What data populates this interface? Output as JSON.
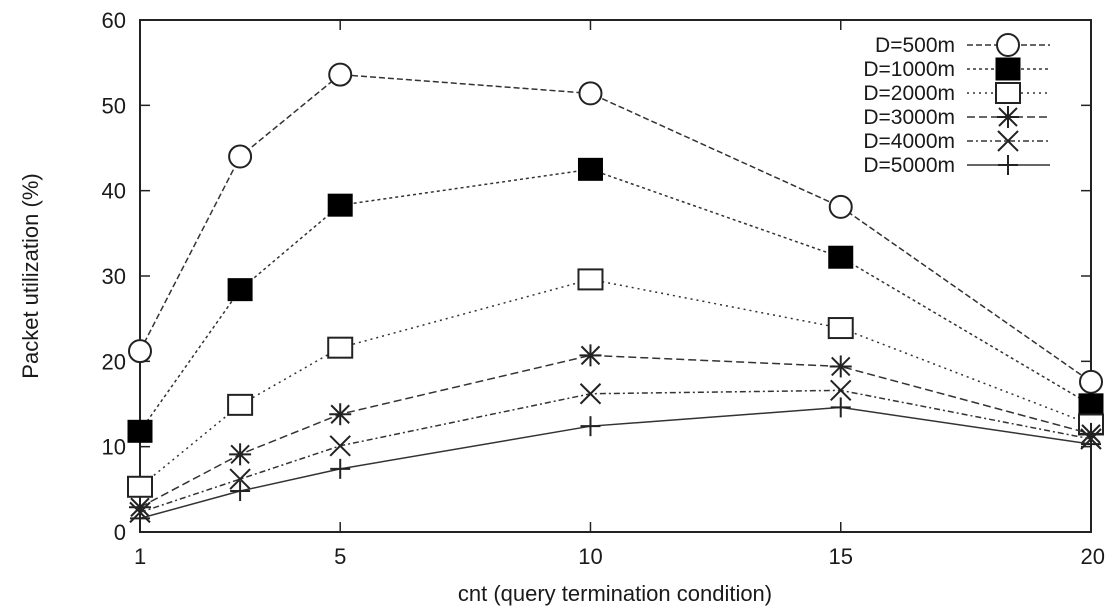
{
  "chart_data": {
    "type": "line",
    "title": "",
    "xlabel": "cnt (query termination condition)",
    "ylabel": "Packet utilization (%)",
    "xlim": [
      1,
      20
    ],
    "ylim": [
      0,
      60
    ],
    "xticks": [
      1,
      5,
      10,
      15,
      20
    ],
    "yticks": [
      0,
      10,
      20,
      30,
      40,
      50,
      60
    ],
    "grid": false,
    "legend_position": "top-right",
    "x": [
      1,
      3,
      5,
      10,
      15,
      20
    ],
    "series": [
      {
        "name": "D=500m",
        "marker": "open-circle",
        "dash": "6,3",
        "values": [
          21.2,
          44.0,
          53.6,
          51.4,
          38.1,
          17.6
        ]
      },
      {
        "name": "D=1000m",
        "marker": "filled-square",
        "dash": "3,3",
        "values": [
          11.8,
          28.4,
          38.3,
          42.5,
          32.2,
          14.9
        ]
      },
      {
        "name": "D=2000m",
        "marker": "open-square",
        "dash": "2,4",
        "values": [
          5.3,
          14.9,
          21.6,
          29.6,
          23.9,
          12.6
        ]
      },
      {
        "name": "D=3000m",
        "marker": "asterisk",
        "dash": "8,4",
        "values": [
          2.9,
          9.1,
          13.8,
          20.7,
          19.4,
          11.5
        ]
      },
      {
        "name": "D=4000m",
        "marker": "cross",
        "dash": "6,3,2,3",
        "values": [
          2.3,
          6.2,
          10.1,
          16.2,
          16.6,
          10.9
        ]
      },
      {
        "name": "D=5000m",
        "marker": "plus",
        "dash": "",
        "values": [
          1.6,
          4.8,
          7.4,
          12.4,
          14.6,
          10.3
        ]
      }
    ]
  }
}
